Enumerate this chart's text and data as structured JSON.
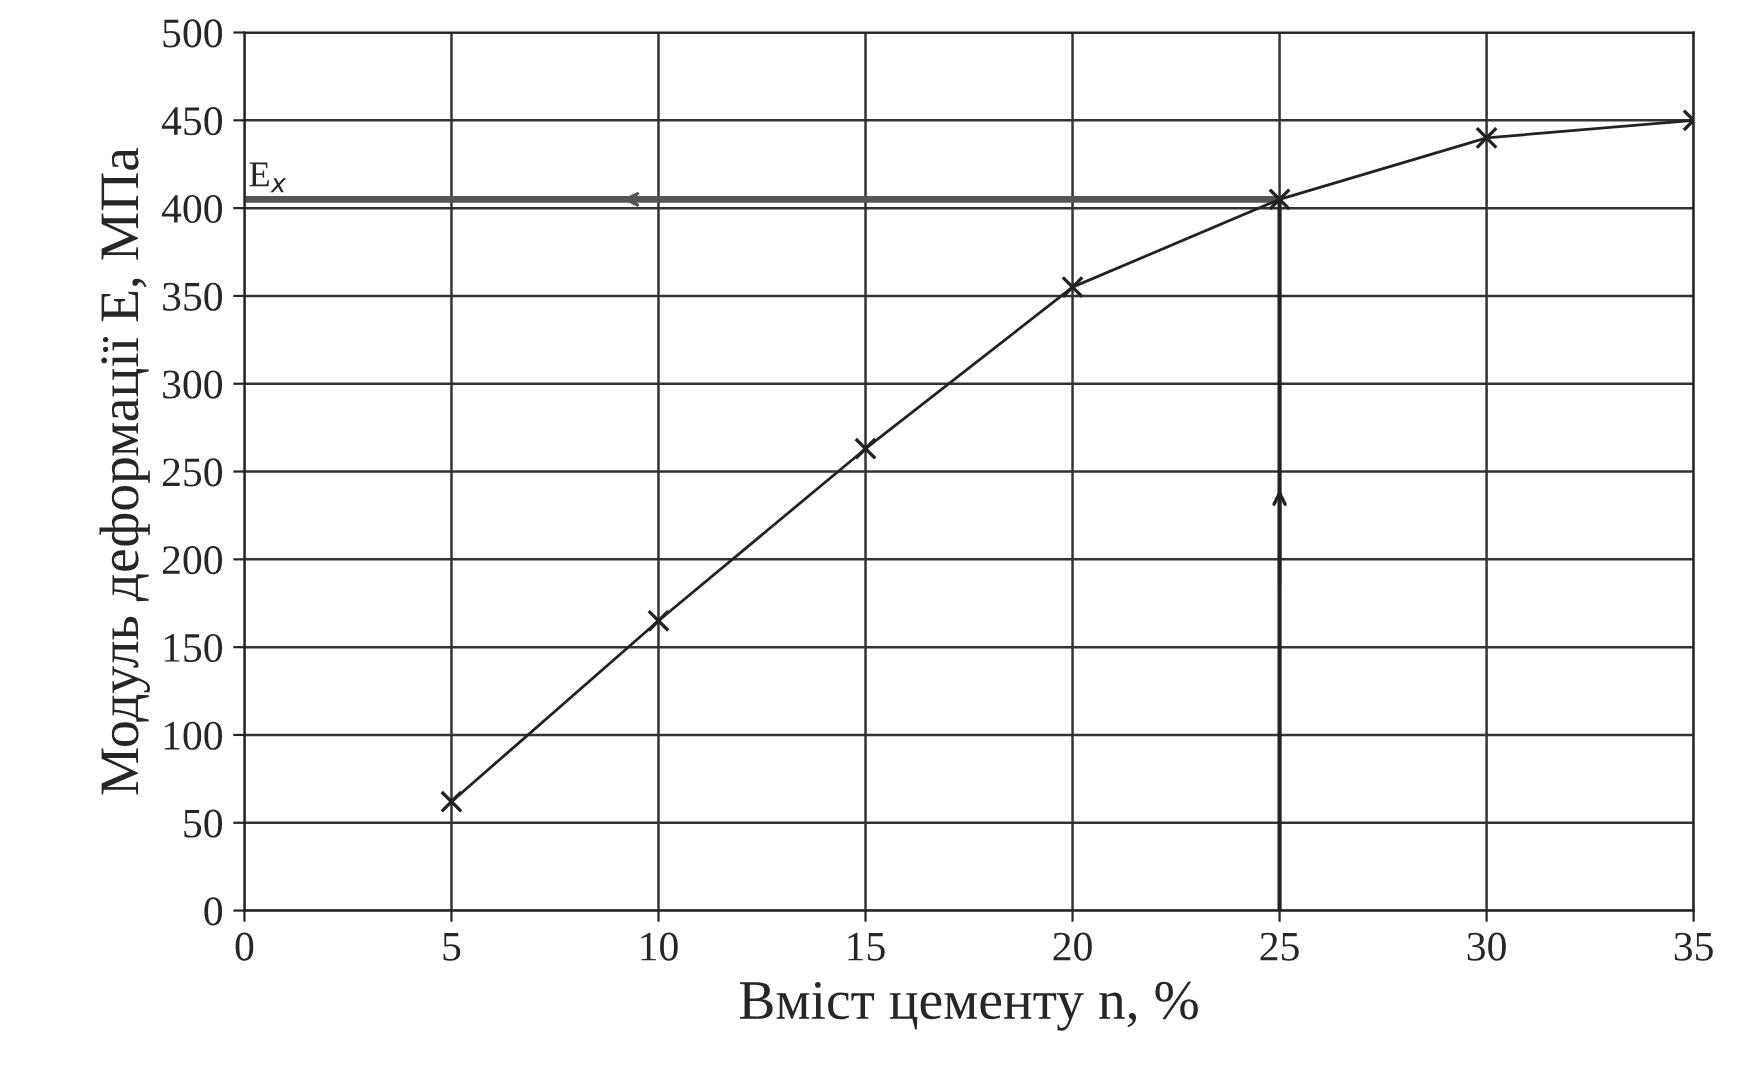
{
  "chart_data": {
    "type": "line",
    "xlabel": "Вміст цементу n, %",
    "ylabel": "Модуль деформації E, МПа",
    "x": [
      5,
      10,
      15,
      20,
      25,
      30,
      35
    ],
    "series": [
      {
        "color": "#222222",
        "values": [
          62,
          165,
          263,
          355,
          405,
          440,
          450
        ]
      }
    ],
    "xlim": [
      0,
      35
    ],
    "xticks": [
      0,
      5,
      10,
      15,
      20,
      25,
      30,
      35
    ],
    "ylim": [
      0,
      500
    ],
    "yticks": [
      0,
      50,
      100,
      150,
      200,
      250,
      300,
      350,
      400,
      450,
      500
    ],
    "ref_lines": [
      {
        "axis": "y",
        "value": 405,
        "label": "E$_{x}$",
        "color": "#555555"
      },
      {
        "axis": "x",
        "value": 25,
        "color": "#222222"
      }
    ],
    "grid": true,
    "marker": "cross",
    "line_style": "solid"
  }
}
